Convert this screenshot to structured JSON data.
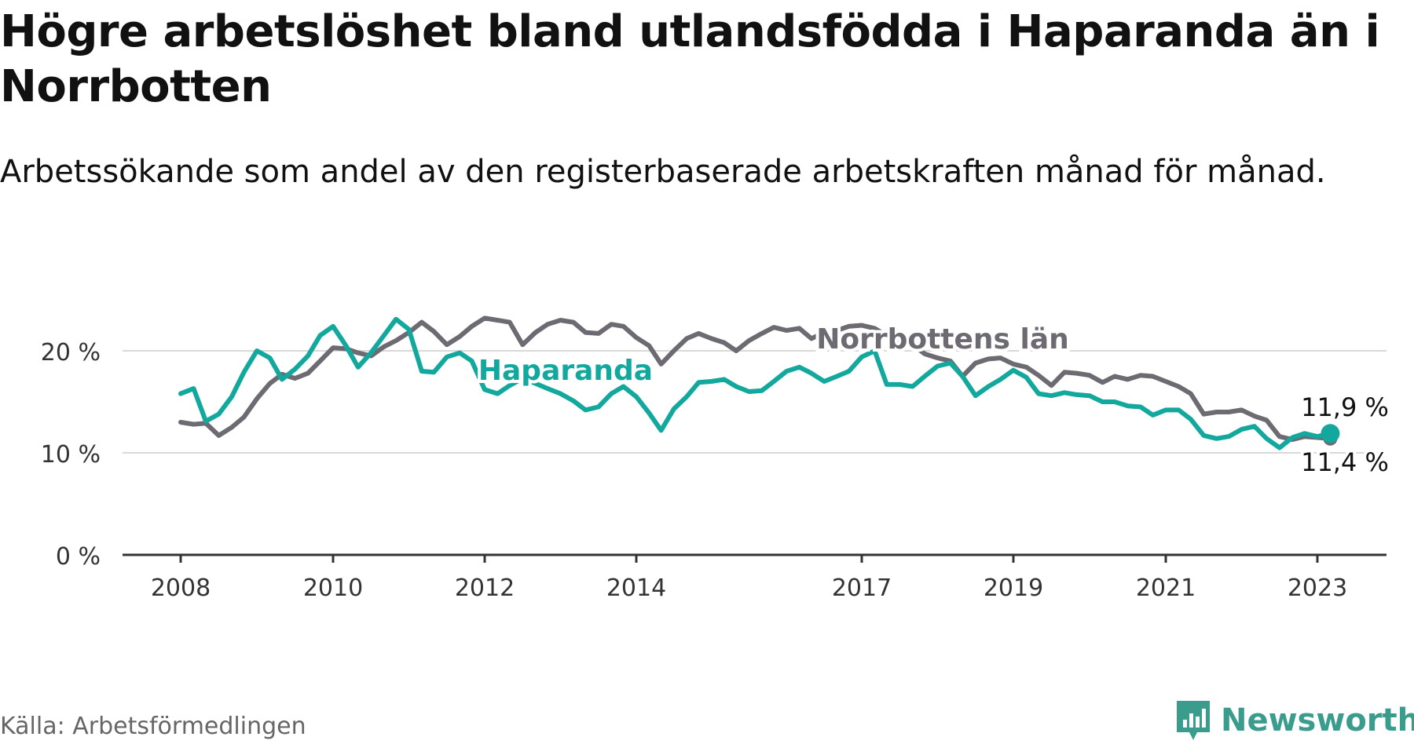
{
  "chart_data": {
    "type": "line",
    "title": "Högre arbetslöshet bland utlandsfödda i Haparanda än i Norrbotten",
    "subtitle": "Arbetssökande som andel av den registerbaserade arbetskraften månad för månad.",
    "xlabel": "",
    "ylabel": "",
    "xlim": [
      2008,
      2024
    ],
    "ylim": [
      0,
      22
    ],
    "yticks": [
      0,
      10,
      20
    ],
    "ytick_labels": [
      "0 %",
      "10 %",
      "20 %"
    ],
    "xticks": [
      2008,
      2010,
      2012,
      2014,
      2017,
      2019,
      2021,
      2023
    ],
    "xtick_labels": [
      "2008",
      "2010",
      "2012",
      "2014",
      "2017",
      "2019",
      "2021",
      "2023"
    ],
    "grid": true,
    "series": [
      {
        "name": "Norrbottens län",
        "color": "#6d6a72",
        "x": [
          2008.0,
          2008.17,
          2008.33,
          2008.5,
          2008.67,
          2008.83,
          2009.0,
          2009.17,
          2009.33,
          2009.5,
          2009.67,
          2009.83,
          2010.0,
          2010.17,
          2010.33,
          2010.5,
          2010.67,
          2010.83,
          2011.0,
          2011.17,
          2011.33,
          2011.5,
          2011.67,
          2011.83,
          2012.0,
          2012.17,
          2012.33,
          2012.5,
          2012.67,
          2012.83,
          2013.0,
          2013.17,
          2013.33,
          2013.5,
          2013.67,
          2013.83,
          2014.0,
          2014.17,
          2014.33,
          2014.5,
          2014.67,
          2014.83,
          2015.0,
          2015.17,
          2015.33,
          2015.5,
          2015.67,
          2015.83,
          2016.0,
          2016.17,
          2016.33,
          2016.5,
          2016.67,
          2016.83,
          2017.0,
          2017.17,
          2017.33,
          2017.5,
          2017.67,
          2017.83,
          2018.0,
          2018.17,
          2018.33,
          2018.5,
          2018.67,
          2018.83,
          2019.0,
          2019.17,
          2019.33,
          2019.5,
          2019.67,
          2019.83,
          2020.0,
          2020.17,
          2020.33,
          2020.5,
          2020.67,
          2020.83,
          2021.0,
          2021.17,
          2021.33,
          2021.5,
          2021.67,
          2021.83,
          2022.0,
          2022.17,
          2022.33,
          2022.5,
          2022.67,
          2022.83,
          2023.0,
          2023.17
        ],
        "values": [
          13.0,
          12.8,
          12.9,
          11.7,
          12.5,
          13.5,
          15.3,
          16.8,
          17.7,
          17.3,
          17.8,
          19.0,
          20.3,
          20.2,
          19.8,
          19.5,
          20.4,
          21.0,
          21.8,
          22.8,
          21.9,
          20.6,
          21.4,
          22.4,
          23.2,
          23.0,
          22.8,
          20.6,
          21.8,
          22.6,
          23.0,
          22.8,
          21.8,
          21.7,
          22.6,
          22.4,
          21.3,
          20.5,
          18.7,
          20.0,
          21.2,
          21.7,
          21.2,
          20.8,
          20.0,
          21.0,
          21.7,
          22.3,
          22.0,
          22.2,
          21.2,
          21.8,
          22.0,
          22.4,
          22.5,
          22.2,
          21.5,
          21.0,
          20.6,
          19.7,
          19.3,
          19.0,
          17.5,
          18.8,
          19.2,
          19.3,
          18.7,
          18.4,
          17.6,
          16.6,
          17.9,
          17.8,
          17.6,
          16.9,
          17.5,
          17.2,
          17.6,
          17.5,
          17.0,
          16.5,
          15.8,
          13.8,
          14.0,
          14.0,
          14.2,
          13.6,
          13.2,
          11.6,
          11.3,
          11.6,
          11.5,
          11.4
        ]
      },
      {
        "name": "Haparanda",
        "color": "#13a89e",
        "x": [
          2008.0,
          2008.17,
          2008.33,
          2008.5,
          2008.67,
          2008.83,
          2009.0,
          2009.17,
          2009.33,
          2009.5,
          2009.67,
          2009.83,
          2010.0,
          2010.17,
          2010.33,
          2010.5,
          2010.67,
          2010.83,
          2011.0,
          2011.17,
          2011.33,
          2011.5,
          2011.67,
          2011.83,
          2012.0,
          2012.17,
          2012.33,
          2012.5,
          2012.67,
          2012.83,
          2013.0,
          2013.17,
          2013.33,
          2013.5,
          2013.67,
          2013.83,
          2014.0,
          2014.17,
          2014.33,
          2014.5,
          2014.67,
          2014.83,
          2015.0,
          2015.17,
          2015.33,
          2015.5,
          2015.67,
          2015.83,
          2016.0,
          2016.17,
          2016.33,
          2016.5,
          2016.67,
          2016.83,
          2017.0,
          2017.17,
          2017.33,
          2017.5,
          2017.67,
          2017.83,
          2018.0,
          2018.17,
          2018.33,
          2018.5,
          2018.67,
          2018.83,
          2019.0,
          2019.17,
          2019.33,
          2019.5,
          2019.67,
          2019.83,
          2020.0,
          2020.17,
          2020.33,
          2020.5,
          2020.67,
          2020.83,
          2021.0,
          2021.17,
          2021.33,
          2021.5,
          2021.67,
          2021.83,
          2022.0,
          2022.17,
          2022.33,
          2022.5,
          2022.67,
          2022.83,
          2023.0,
          2023.17
        ],
        "values": [
          15.8,
          16.3,
          13.1,
          13.8,
          15.5,
          17.9,
          20.0,
          19.3,
          17.2,
          18.2,
          19.5,
          21.5,
          22.4,
          20.5,
          18.4,
          19.8,
          21.5,
          23.1,
          22.1,
          18.0,
          17.9,
          19.4,
          19.8,
          19.0,
          16.2,
          15.8,
          16.6,
          17.3,
          16.8,
          16.3,
          15.8,
          15.1,
          14.2,
          14.5,
          15.8,
          16.5,
          15.5,
          13.9,
          12.2,
          14.3,
          15.5,
          16.9,
          17.0,
          17.2,
          16.5,
          16.0,
          16.1,
          17.0,
          18.0,
          18.4,
          17.8,
          17.0,
          17.5,
          18.0,
          19.4,
          20.0,
          16.7,
          16.7,
          16.5,
          17.5,
          18.5,
          18.8,
          17.5,
          15.6,
          16.5,
          17.2,
          18.1,
          17.4,
          15.8,
          15.6,
          15.9,
          15.7,
          15.6,
          15.0,
          15.0,
          14.6,
          14.5,
          13.7,
          14.2,
          14.2,
          13.3,
          11.7,
          11.4,
          11.6,
          12.3,
          12.6,
          11.4,
          10.5,
          11.5,
          11.9,
          11.6,
          11.9
        ]
      }
    ],
    "labels": {
      "norrbotten": "Norrbottens län",
      "haparanda": "Haparanda",
      "haparanda_end": "11,9 %",
      "norrbotten_end": "11,4 %"
    }
  },
  "source": "Källa: Arbetsförmedlingen",
  "brand": "Newsworthy",
  "colors": {
    "norrbotten": "#6d6a72",
    "haparanda": "#13a89e",
    "brand": "#3a9c8c",
    "grid": "#d9d9d9",
    "axis": "#333333"
  }
}
